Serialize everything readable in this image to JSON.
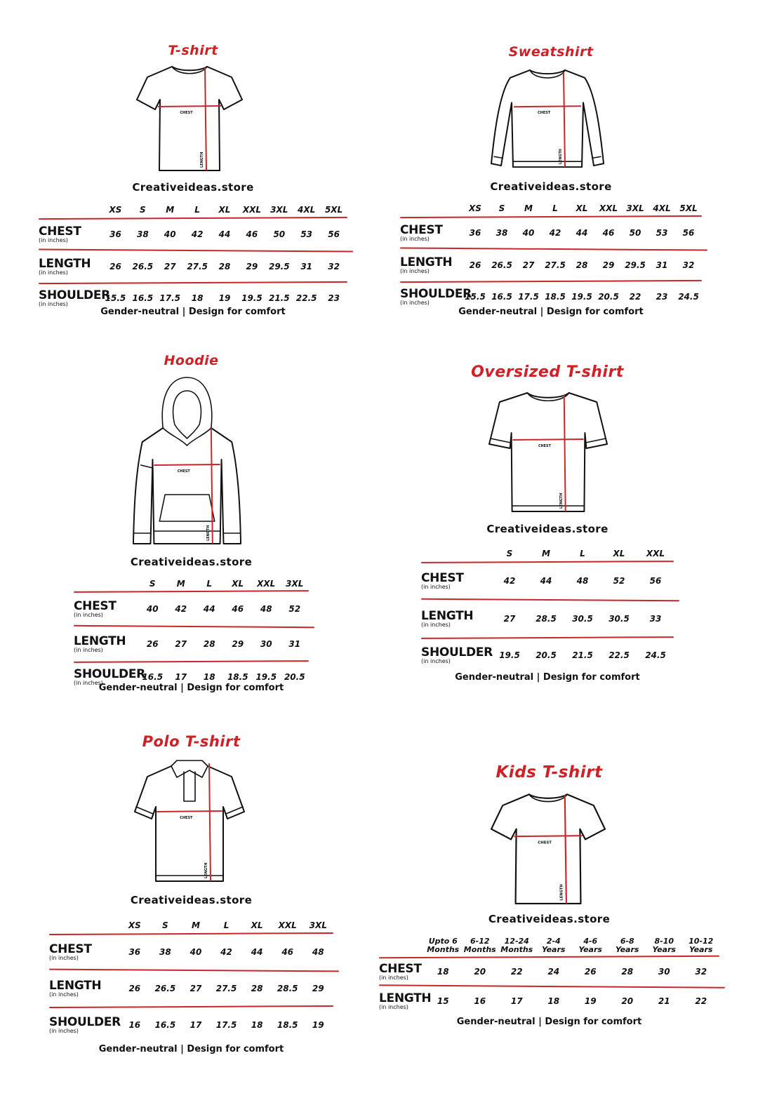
{
  "brand": "Creativeideas.store",
  "footer": "Gender-neutral | Design for comfort",
  "row_unit": "(in inches)",
  "garment_labels": {
    "chest": "CHEST",
    "length": "LENGTH"
  },
  "colors": {
    "title": "#d01f25",
    "rule": "#c9262a",
    "measure_line": "#c9262a",
    "text": "#111111"
  },
  "panels": [
    {
      "title": "T-shirt",
      "garment": "tshirt-icon",
      "sizes": [
        "XS",
        "S",
        "M",
        "L",
        "XL",
        "XXL",
        "3XL",
        "4XL",
        "5XL"
      ],
      "rows": [
        {
          "label": "CHEST",
          "values": [
            "36",
            "38",
            "40",
            "42",
            "44",
            "46",
            "50",
            "53",
            "56"
          ]
        },
        {
          "label": "LENGTH",
          "values": [
            "26",
            "26.5",
            "27",
            "27.5",
            "28",
            "29",
            "29.5",
            "31",
            "32"
          ]
        },
        {
          "label": "SHOULDER",
          "values": [
            "15.5",
            "16.5",
            "17.5",
            "18",
            "19",
            "19.5",
            "21.5",
            "22.5",
            "23"
          ]
        }
      ]
    },
    {
      "title": "Sweatshirt",
      "garment": "sweatshirt-icon",
      "sizes": [
        "XS",
        "S",
        "M",
        "L",
        "XL",
        "XXL",
        "3XL",
        "4XL",
        "5XL"
      ],
      "rows": [
        {
          "label": "CHEST",
          "values": [
            "36",
            "38",
            "40",
            "42",
            "44",
            "46",
            "50",
            "53",
            "56"
          ]
        },
        {
          "label": "LENGTH",
          "values": [
            "26",
            "26.5",
            "27",
            "27.5",
            "28",
            "29",
            "29.5",
            "31",
            "32"
          ]
        },
        {
          "label": "SHOULDER",
          "values": [
            "15.5",
            "16.5",
            "17.5",
            "18.5",
            "19.5",
            "20.5",
            "22",
            "23",
            "24.5"
          ]
        }
      ]
    },
    {
      "title": "Hoodie",
      "garment": "hoodie-icon",
      "sizes": [
        "S",
        "M",
        "L",
        "XL",
        "XXL",
        "3XL"
      ],
      "rows": [
        {
          "label": "CHEST",
          "values": [
            "40",
            "42",
            "44",
            "46",
            "48",
            "52"
          ]
        },
        {
          "label": "LENGTH",
          "values": [
            "26",
            "27",
            "28",
            "29",
            "30",
            "31"
          ]
        },
        {
          "label": "SHOULDER",
          "values": [
            "16.5",
            "17",
            "18",
            "18.5",
            "19.5",
            "20.5"
          ]
        }
      ]
    },
    {
      "title": "Oversized T-shirt",
      "garment": "oversized-tshirt-icon",
      "sizes": [
        "S",
        "M",
        "L",
        "XL",
        "XXL"
      ],
      "rows": [
        {
          "label": "CHEST",
          "values": [
            "42",
            "44",
            "48",
            "52",
            "56"
          ]
        },
        {
          "label": "LENGTH",
          "values": [
            "27",
            "28.5",
            "30.5",
            "30.5",
            "33"
          ]
        },
        {
          "label": "SHOULDER",
          "values": [
            "19.5",
            "20.5",
            "21.5",
            "22.5",
            "24.5"
          ]
        }
      ]
    },
    {
      "title": "Polo T-shirt",
      "garment": "polo-shirt-icon",
      "sizes": [
        "XS",
        "S",
        "M",
        "L",
        "XL",
        "XXL",
        "3XL"
      ],
      "rows": [
        {
          "label": "CHEST",
          "values": [
            "36",
            "38",
            "40",
            "42",
            "44",
            "46",
            "48"
          ]
        },
        {
          "label": "LENGTH",
          "values": [
            "26",
            "26.5",
            "27",
            "27.5",
            "28",
            "28.5",
            "29"
          ]
        },
        {
          "label": "SHOULDER",
          "values": [
            "16",
            "16.5",
            "17",
            "17.5",
            "18",
            "18.5",
            "19"
          ]
        }
      ]
    },
    {
      "title": "Kids T-shirt",
      "garment": "kids-tshirt-icon",
      "sizes": [
        "Upto 6\nMonths",
        "6-12\nMonths",
        "12-24\nMonths",
        "2-4\nYears",
        "4-6\nYears",
        "6-8\nYears",
        "8-10\nYears",
        "10-12\nYears"
      ],
      "rows": [
        {
          "label": "CHEST",
          "values": [
            "18",
            "20",
            "22",
            "24",
            "26",
            "28",
            "30",
            "32"
          ]
        },
        {
          "label": "LENGTH",
          "values": [
            "15",
            "16",
            "17",
            "18",
            "19",
            "20",
            "21",
            "22"
          ]
        }
      ]
    }
  ]
}
